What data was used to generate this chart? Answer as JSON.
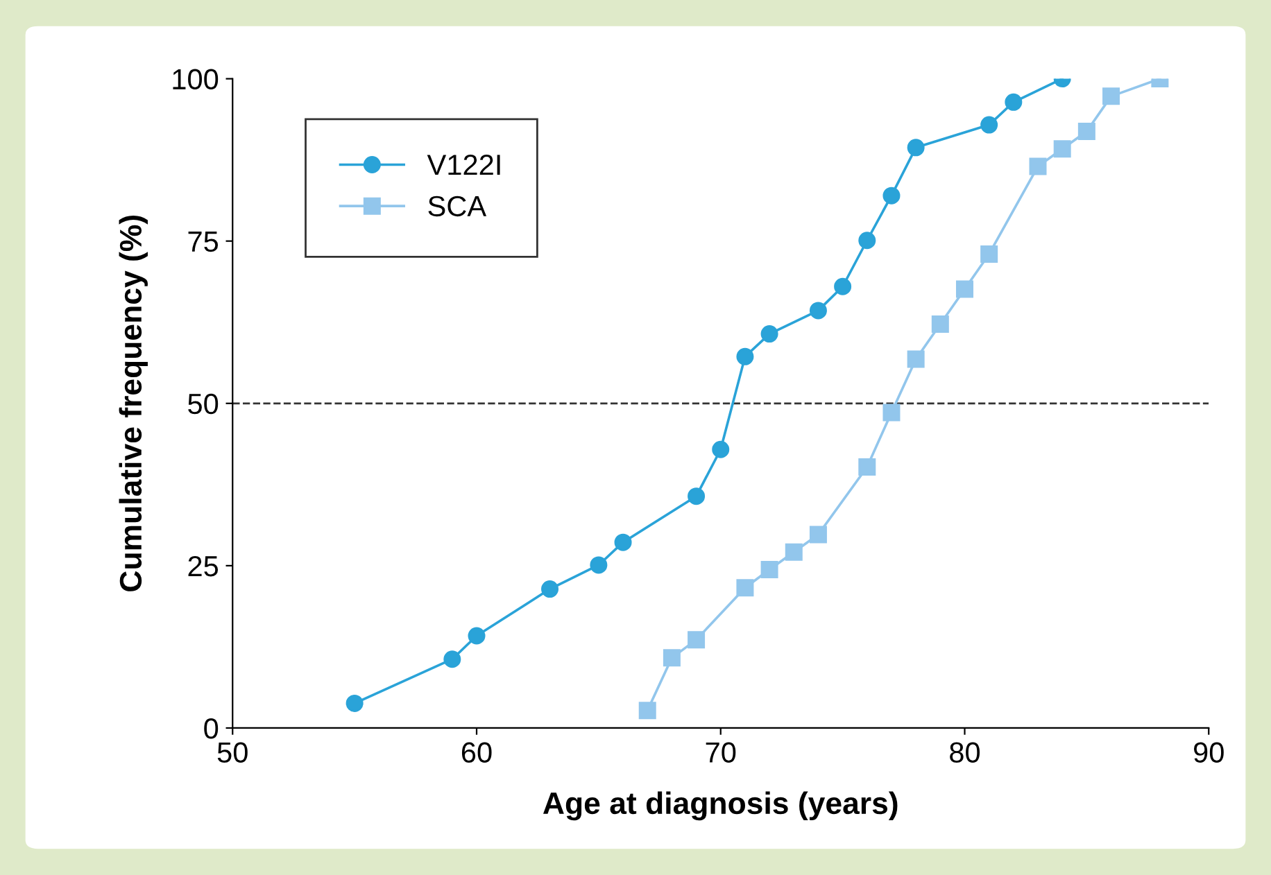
{
  "chart_data": {
    "type": "line",
    "xlabel": "Age at diagnosis (years)",
    "ylabel": "Cumulative frequency (%)",
    "xlim": [
      50,
      90
    ],
    "xticks": [
      50,
      60,
      70,
      80,
      90
    ],
    "ylim": [
      0,
      100
    ],
    "yticks": [
      0,
      25,
      50,
      75,
      100
    ],
    "grid": false,
    "legend": "top left",
    "series": [
      {
        "name": "V122I",
        "color": "#2aa3d8",
        "marker": "circle",
        "x": [
          55,
          59,
          60,
          63,
          65,
          66,
          69,
          70,
          71,
          72,
          74,
          75,
          76,
          77,
          78,
          81,
          82,
          84
        ],
        "values": [
          3.8,
          10.6,
          14.2,
          21.4,
          25.1,
          28.6,
          35.7,
          42.9,
          57.2,
          60.7,
          64.3,
          68,
          75.1,
          82,
          89.4,
          92.9,
          96.4,
          100
        ]
      },
      {
        "name": "SCA",
        "color": "#92c6ec",
        "marker": "square",
        "x": [
          67,
          68,
          69,
          71,
          72,
          73,
          74,
          76,
          77,
          78,
          79,
          80,
          81,
          83,
          84,
          85,
          86,
          88
        ],
        "values": [
          2.7,
          10.8,
          13.6,
          21.6,
          24.4,
          27.1,
          29.8,
          40.2,
          48.6,
          56.8,
          62.2,
          67.6,
          73,
          86.5,
          89.2,
          91.9,
          97.3,
          100
        ]
      }
    ],
    "ref_lines": [
      {
        "axis": "y",
        "value": 50,
        "line_style": "dashed",
        "color": "#333333"
      }
    ]
  }
}
